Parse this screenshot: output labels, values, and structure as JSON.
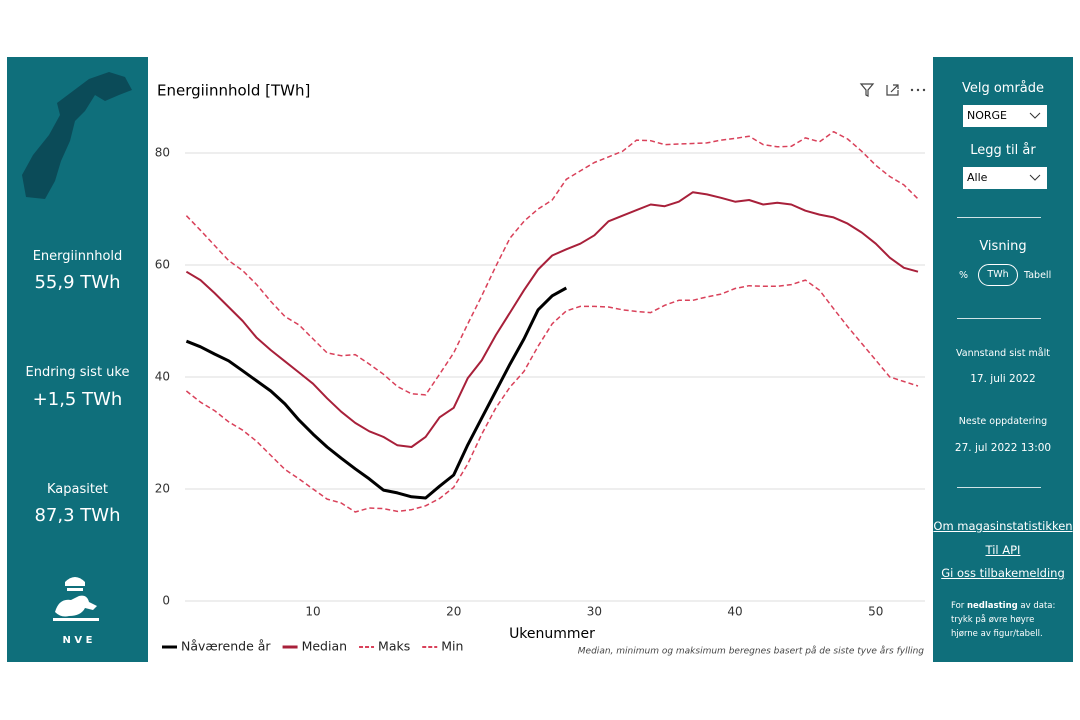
{
  "sidebar": {
    "energy_label": "Energiinnhold",
    "energy_value": "55,9 TWh",
    "change_label": "Endring sist uke",
    "change_value": "+1,5 TWh",
    "capacity_label": "Kapasitet",
    "capacity_value": "87,3 TWh",
    "logo_text": "N V E"
  },
  "controls": {
    "area_label": "Velg område",
    "area_value": "NORGE",
    "year_label": "Legg til år",
    "year_value": "Alle",
    "view_label": "Visning",
    "view_options": [
      "%",
      "TWh",
      "Tabell"
    ],
    "measured_label": "Vannstand sist målt",
    "measured_value": "17. juli 2022",
    "next_label": "Neste oppdatering",
    "next_value": "27. jul 2022 13:00",
    "links": [
      "Om magasinstatistikken",
      "Til API",
      "Gi oss tilbakemelding"
    ],
    "note": [
      "For ",
      "nedlasting",
      " av data: trykk på øvre høyre hjørne av figur/tabell."
    ]
  },
  "chart_data": {
    "type": "line",
    "title": "Energiinnhold [TWh]",
    "x_label": "Ukenummer",
    "footnote": "Median, minimum og maksimum beregnes basert på de siste tyve års fylling",
    "x": [
      1,
      2,
      3,
      4,
      5,
      6,
      7,
      8,
      9,
      10,
      11,
      12,
      13,
      14,
      15,
      16,
      17,
      18,
      19,
      20,
      21,
      22,
      23,
      24,
      25,
      26,
      27,
      28,
      29,
      30,
      31,
      32,
      33,
      34,
      35,
      36,
      37,
      38,
      39,
      40,
      41,
      42,
      43,
      44,
      45,
      46,
      47,
      48,
      49,
      50,
      51,
      52,
      53
    ],
    "xlim": [
      0.9,
      53.5
    ],
    "xticks": [
      10,
      20,
      30,
      40,
      50
    ],
    "ylim": [
      0,
      85
    ],
    "yticks": [
      0,
      20,
      40,
      60,
      80
    ],
    "grid": true,
    "legend": "bottom-left",
    "series": [
      {
        "name": "Nåværende år",
        "color": "#000000",
        "dash": false,
        "width": 3,
        "values": [
          46.4,
          45.4,
          44.1,
          42.9,
          41.1,
          39.3,
          37.5,
          35.2,
          32.3,
          29.8,
          27.5,
          25.5,
          23.6,
          21.8,
          19.8,
          19.3,
          18.6,
          18.4,
          20.5,
          22.5,
          27.9,
          32.7,
          37.5,
          42.3,
          46.8,
          52.0,
          54.5,
          55.9,
          null,
          null,
          null,
          null,
          null,
          null,
          null,
          null,
          null,
          null,
          null,
          null,
          null,
          null,
          null,
          null,
          null,
          null,
          null,
          null,
          null,
          null,
          null,
          null,
          null
        ]
      },
      {
        "name": "Median",
        "color": "#a8203a",
        "dash": false,
        "width": 2,
        "values": [
          58.8,
          57.3,
          55.0,
          52.5,
          50.0,
          47.0,
          44.8,
          42.8,
          40.8,
          38.8,
          36.2,
          33.8,
          31.8,
          30.3,
          29.3,
          27.8,
          27.5,
          29.3,
          32.8,
          34.5,
          39.8,
          43.0,
          47.5,
          51.5,
          55.5,
          59.2,
          61.7,
          62.8,
          63.8,
          65.3,
          67.8,
          68.8,
          69.8,
          70.8,
          70.5,
          71.3,
          73.0,
          72.6,
          72.0,
          71.3,
          71.6,
          70.8,
          71.1,
          70.8,
          69.7,
          69.0,
          68.5,
          67.4,
          65.8,
          63.8,
          61.3,
          59.5,
          58.8
        ]
      },
      {
        "name": "Maks",
        "color": "#d9415a",
        "dash": true,
        "width": 1.5,
        "values": [
          68.8,
          66.2,
          63.5,
          60.8,
          59.0,
          56.5,
          53.5,
          50.8,
          49.3,
          46.8,
          44.3,
          43.8,
          44.0,
          42.3,
          40.5,
          38.3,
          37.0,
          36.8,
          40.5,
          44.3,
          49.5,
          54.5,
          59.8,
          64.8,
          67.8,
          70.0,
          71.6,
          75.3,
          76.8,
          78.3,
          79.3,
          80.3,
          82.3,
          82.2,
          81.5,
          81.6,
          81.7,
          81.8,
          82.3,
          82.6,
          83.0,
          81.5,
          81.1,
          81.2,
          82.7,
          82.0,
          83.8,
          82.5,
          80.3,
          77.8,
          75.8,
          74.3,
          71.8
        ]
      },
      {
        "name": "Min",
        "color": "#d9415a",
        "dash": true,
        "width": 1.5,
        "values": [
          37.5,
          35.5,
          34.0,
          32.0,
          30.5,
          28.5,
          26.0,
          23.5,
          21.8,
          20.0,
          18.2,
          17.5,
          15.9,
          16.6,
          16.5,
          16.0,
          16.3,
          17.0,
          18.3,
          20.3,
          24.5,
          29.8,
          34.5,
          38.2,
          41.0,
          45.5,
          49.5,
          51.8,
          52.6,
          52.6,
          52.5,
          52.0,
          51.7,
          51.5,
          52.8,
          53.7,
          53.7,
          54.3,
          54.8,
          55.8,
          56.3,
          56.2,
          56.2,
          56.5,
          57.3,
          55.5,
          52.2,
          49.0,
          46.0,
          43.0,
          40.0,
          39.2,
          38.4
        ]
      }
    ]
  }
}
